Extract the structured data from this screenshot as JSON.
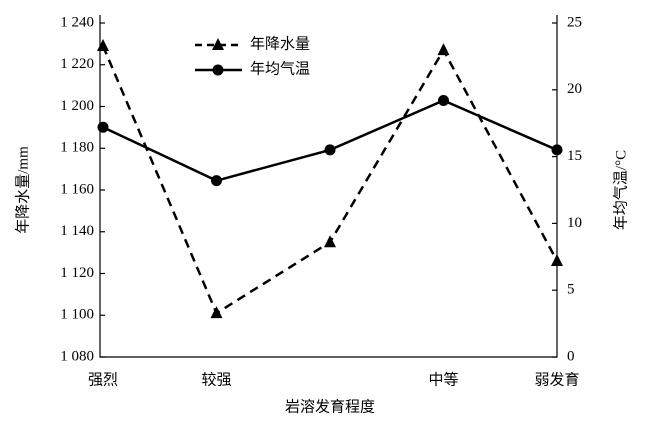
{
  "chart_data": {
    "type": "line",
    "xlabel": "岩溶发育程度",
    "ylabel": "年降水量/mm",
    "y2label": "年均气温/°C",
    "categories": [
      "强烈",
      "较强",
      null,
      "中等",
      "弱发育"
    ],
    "series": [
      {
        "name": "年降水量",
        "color": "#000000",
        "dash": true,
        "marker": "triangle",
        "values": [
          1229,
          1101,
          1135,
          1227,
          1126
        ]
      },
      {
        "name": "年均气温",
        "color": "#000000",
        "dash": false,
        "marker": "circle",
        "axis": "y2",
        "values": [
          17.2,
          13.2,
          15.5,
          19.2,
          15.5
        ]
      }
    ],
    "ylim": [
      1080,
      1240
    ],
    "yticks": [
      {
        "value": 1080,
        "label": "1 080"
      },
      {
        "value": 1100,
        "label": "1 100"
      },
      {
        "value": 1120,
        "label": "1 120"
      },
      {
        "value": 1140,
        "label": "1 140"
      },
      {
        "value": 1160,
        "label": "1 160"
      },
      {
        "value": 1180,
        "label": "1 180"
      },
      {
        "value": 1200,
        "label": "1 200"
      },
      {
        "value": 1220,
        "label": "1 220"
      },
      {
        "value": 1240,
        "label": "1 240"
      }
    ],
    "y2lim": [
      0,
      25
    ],
    "y2ticks": [
      0,
      5,
      10,
      15,
      20,
      25
    ],
    "grid": false,
    "legend": "top"
  }
}
